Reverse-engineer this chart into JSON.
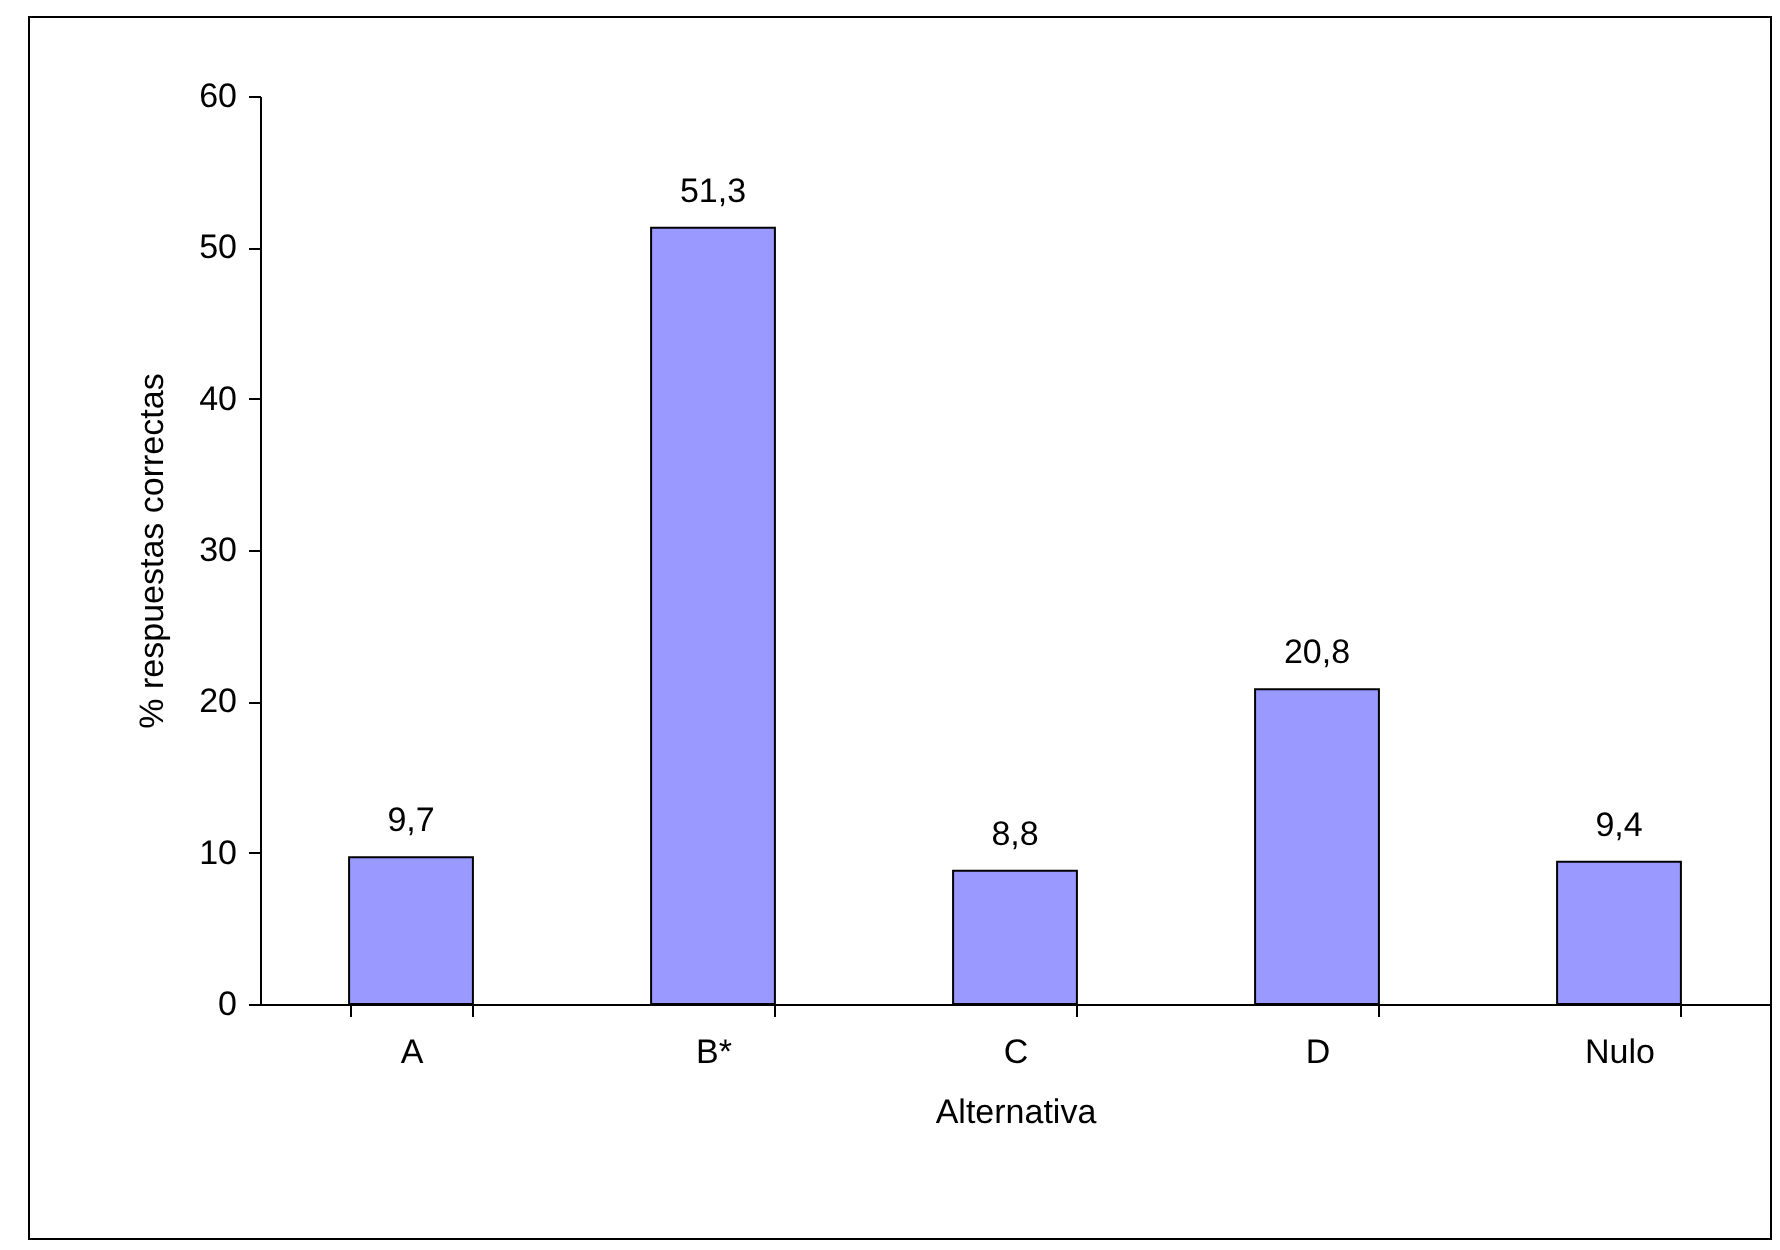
{
  "chart_data": {
    "type": "bar",
    "xlabel": "Alternativa",
    "ylabel": "% respuestas correctas",
    "categories": [
      "A",
      "B*",
      "C",
      "D",
      "Nulo"
    ],
    "values": [
      9.7,
      51.3,
      8.8,
      20.8,
      9.4
    ],
    "value_labels": [
      "9,7",
      "51,3",
      "8,8",
      "20,8",
      "9,4"
    ],
    "color": "#9999ff",
    "ylim": [
      0,
      60
    ],
    "yticks": [
      0,
      10,
      20,
      30,
      40,
      50,
      60
    ],
    "grid": false
  }
}
